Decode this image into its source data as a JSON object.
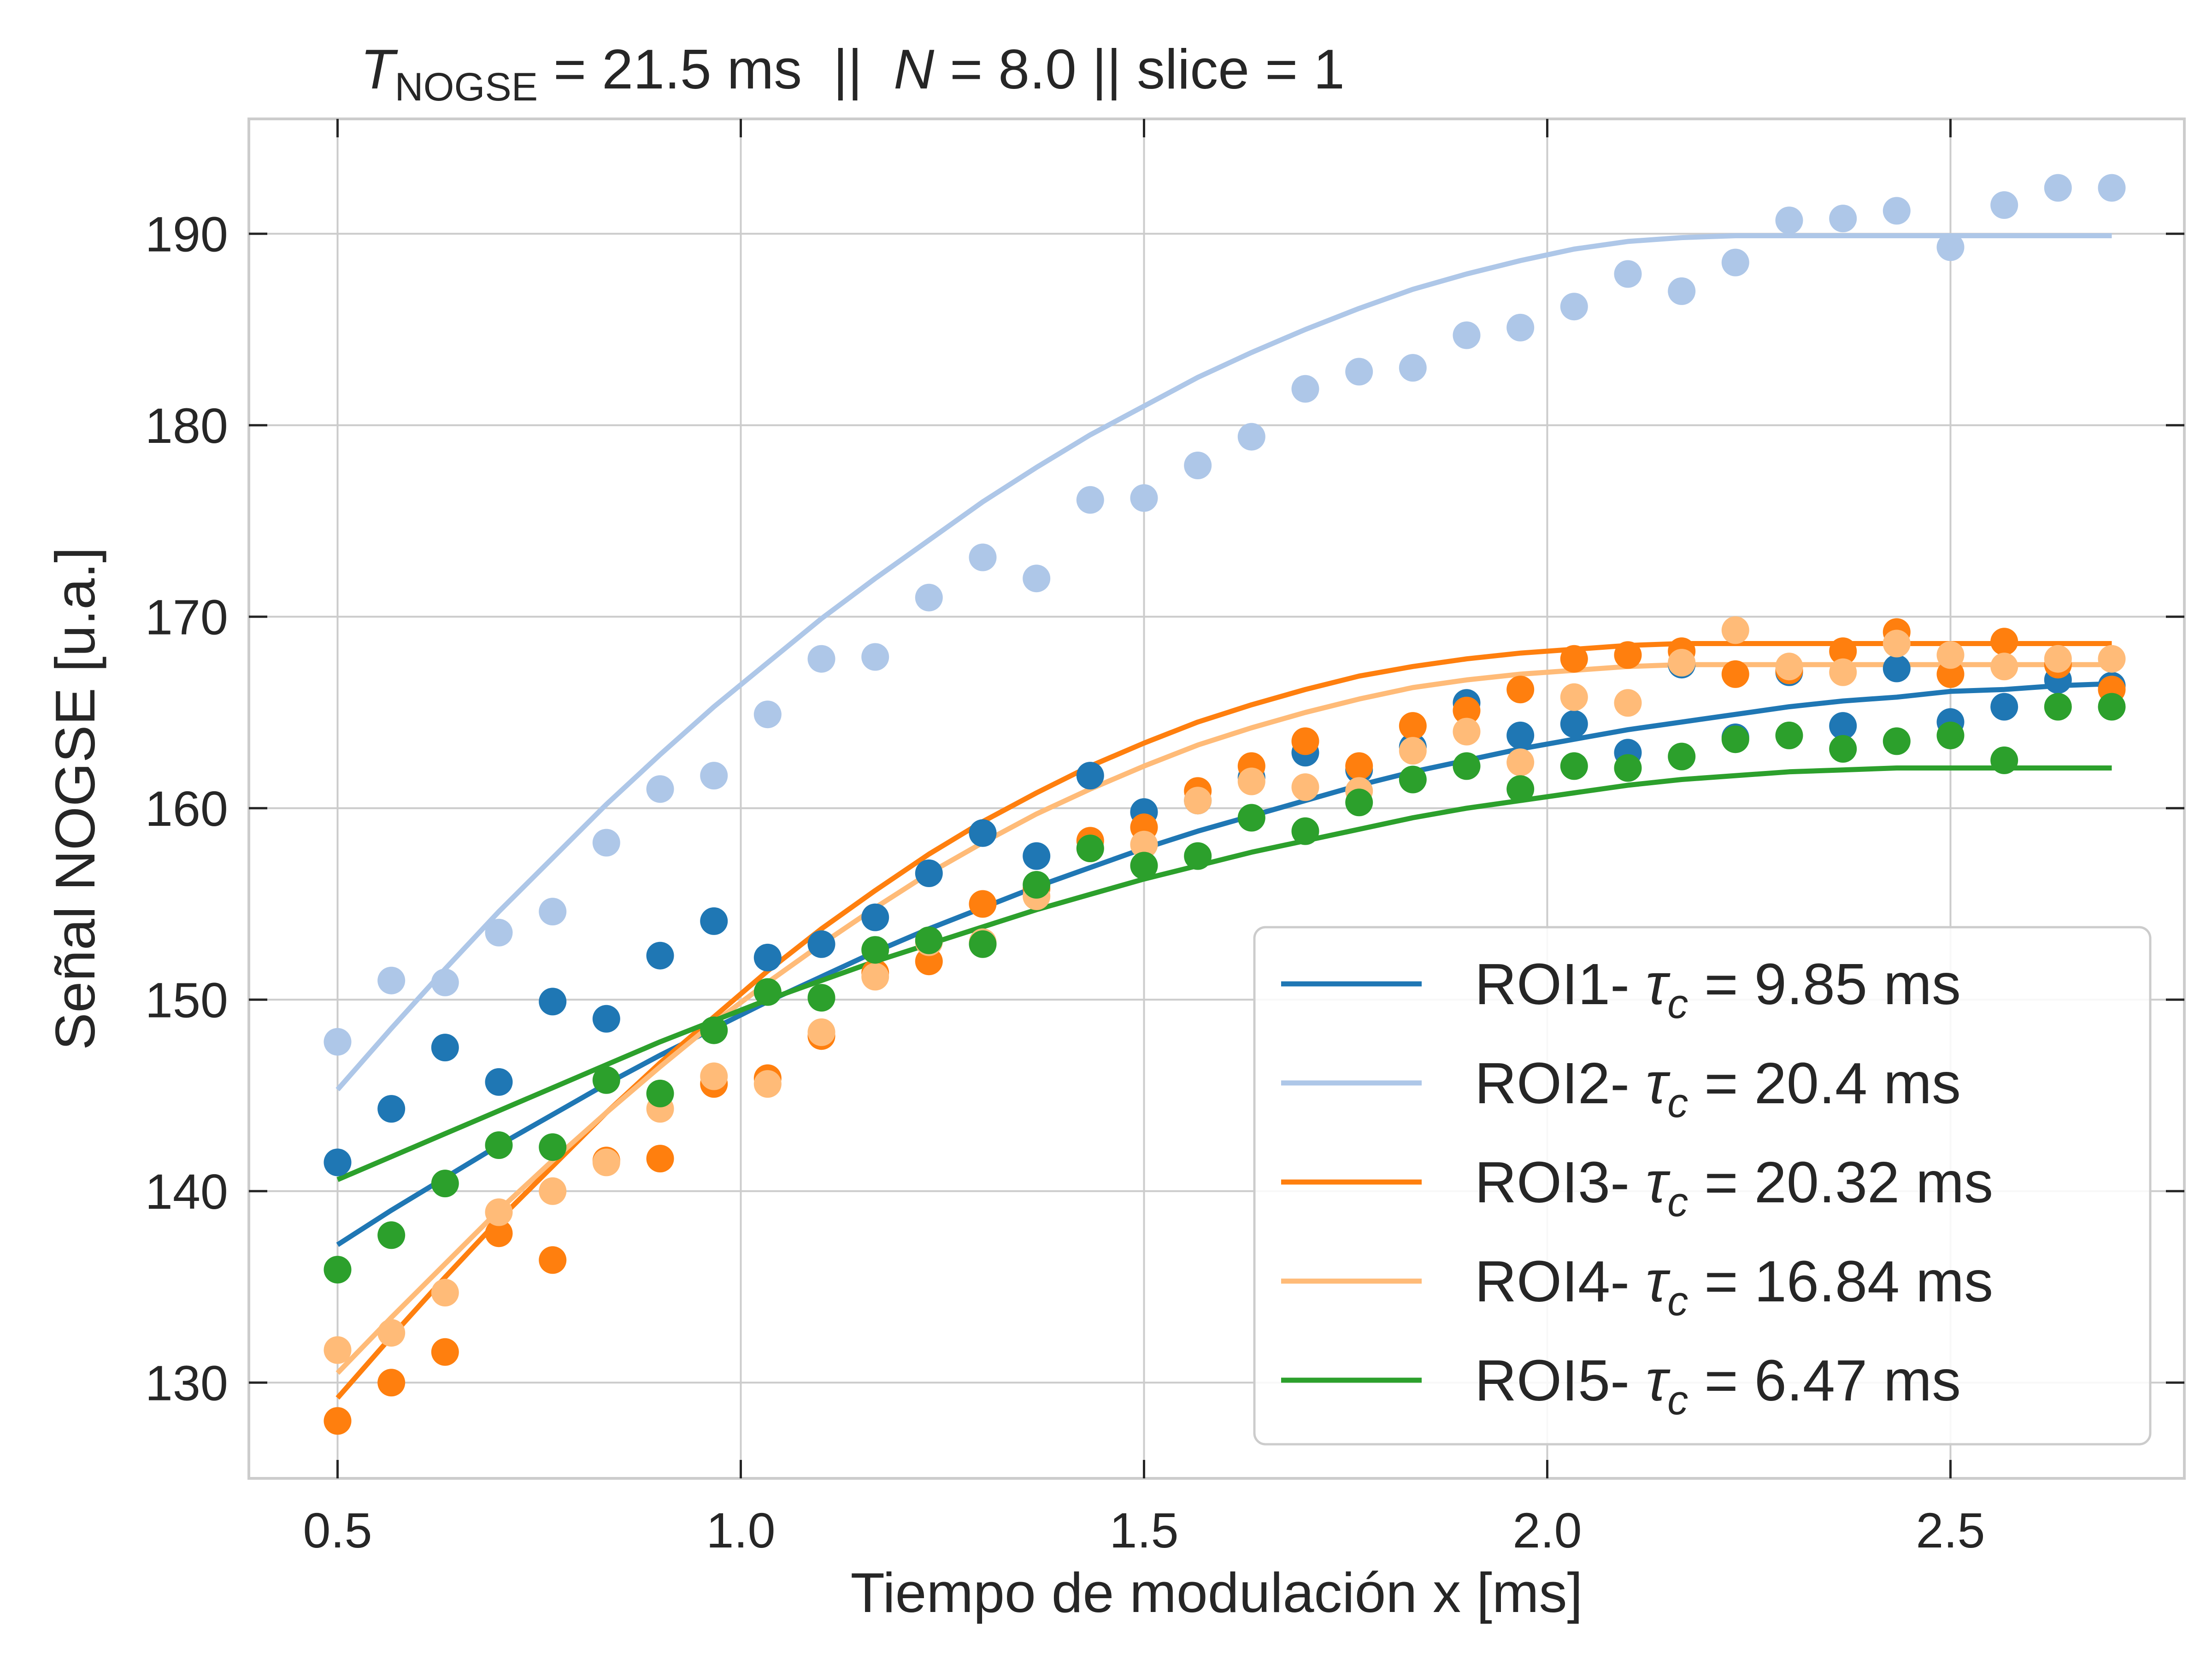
{
  "chart_data": {
    "type": "scatter",
    "title": {
      "t_symbol": "T",
      "t_subscript": "NOGSE",
      "t_value": " = 21.5 ms  ||  ",
      "n_symbol": "N",
      "rest": " = 8.0 || slice = 1"
    },
    "xlabel": "Tiempo de modulación x [ms]",
    "ylabel": "Señal NOGSE [u.a.]",
    "xlim": [
      0.39,
      2.79
    ],
    "ylim": [
      125,
      196
    ],
    "xticks": [
      0.5,
      1.0,
      1.5,
      2.0,
      2.5
    ],
    "xtick_labels": [
      "0.5",
      "1.0",
      "1.5",
      "2.0",
      "2.5"
    ],
    "yticks": [
      130,
      140,
      150,
      160,
      170,
      180,
      190
    ],
    "ytick_labels": [
      "130",
      "140",
      "150",
      "160",
      "170",
      "180",
      "190"
    ],
    "grid": true,
    "legend_position": "lower-right",
    "x": [
      0.5,
      0.5667,
      0.6333,
      0.7,
      0.7667,
      0.8333,
      0.9,
      0.9667,
      1.0333,
      1.1,
      1.1667,
      1.2333,
      1.3,
      1.3667,
      1.4333,
      1.5,
      1.5667,
      1.6333,
      1.7,
      1.7667,
      1.8333,
      1.9,
      1.9667,
      2.0333,
      2.1,
      2.1667,
      2.2333,
      2.3,
      2.3667,
      2.4333,
      2.5,
      2.5667,
      2.6333,
      2.7
    ],
    "series": [
      {
        "name_prefix": "ROI1- ",
        "tau_symbol": "τ",
        "tau_sub": "c",
        "value_text": " = 9.85 ms",
        "color": "#1f77b4",
        "points": [
          141.5,
          144.3,
          147.5,
          145.7,
          149.9,
          149.0,
          152.3,
          154.1,
          152.2,
          152.9,
          154.3,
          156.6,
          158.7,
          157.5,
          161.7,
          159.8,
          160.4,
          161.6,
          162.9,
          162.0,
          163.2,
          165.5,
          163.8,
          164.4,
          162.9,
          167.5,
          163.7,
          167.1,
          164.3,
          167.3,
          164.5,
          165.3,
          166.7,
          166.4
        ],
        "fit_curve": [
          137.2,
          139.0,
          140.7,
          142.4,
          144.0,
          145.6,
          147.1,
          148.5,
          149.9,
          151.2,
          152.5,
          153.7,
          154.8,
          155.9,
          156.9,
          157.9,
          158.8,
          159.6,
          160.4,
          161.2,
          161.9,
          162.5,
          163.1,
          163.6,
          164.1,
          164.5,
          164.9,
          165.3,
          165.6,
          165.8,
          166.1,
          166.2,
          166.4,
          166.5
        ]
      },
      {
        "name_prefix": "ROI2- ",
        "tau_symbol": "τ",
        "tau_sub": "c",
        "value_text": " = 20.4 ms",
        "color": "#aec7e8",
        "points": [
          147.8,
          151.0,
          150.9,
          153.5,
          154.6,
          158.2,
          161.0,
          161.7,
          164.9,
          167.8,
          167.9,
          171.0,
          173.1,
          172.0,
          176.1,
          176.2,
          177.9,
          179.4,
          181.9,
          182.8,
          183.0,
          184.7,
          185.1,
          186.2,
          187.9,
          187.0,
          188.5,
          190.7,
          190.8,
          191.2,
          189.3,
          191.5,
          192.4,
          192.4
        ],
        "fit_curve": [
          145.3,
          148.5,
          151.6,
          154.6,
          157.4,
          160.2,
          162.8,
          165.3,
          167.6,
          169.9,
          172.0,
          174.0,
          176.0,
          177.8,
          179.5,
          181.0,
          182.5,
          183.8,
          185.0,
          186.1,
          187.1,
          187.9,
          188.6,
          189.2,
          189.6,
          189.8,
          189.9,
          189.9,
          189.9,
          189.9,
          189.9,
          189.9,
          189.9,
          189.9
        ]
      },
      {
        "name_prefix": "ROI3- ",
        "tau_symbol": "τ",
        "tau_sub": "c",
        "value_text": " = 20.32 ms",
        "color": "#ff7f0e",
        "points": [
          128.0,
          130.0,
          131.6,
          137.8,
          136.4,
          141.6,
          141.7,
          145.6,
          145.9,
          148.1,
          151.4,
          152.0,
          155.0,
          155.8,
          158.3,
          159.0,
          160.9,
          162.2,
          163.5,
          162.2,
          164.3,
          165.1,
          166.2,
          167.8,
          168.0,
          168.2,
          167.0,
          167.2,
          168.2,
          169.2,
          167.0,
          168.7,
          167.5,
          166.2
        ],
        "fit_curve": [
          129.2,
          132.4,
          135.5,
          138.5,
          141.3,
          144.1,
          146.7,
          149.1,
          151.5,
          153.7,
          155.7,
          157.6,
          159.3,
          160.8,
          162.2,
          163.4,
          164.5,
          165.4,
          166.2,
          166.9,
          167.4,
          167.8,
          168.1,
          168.3,
          168.5,
          168.6,
          168.6,
          168.6,
          168.6,
          168.6,
          168.6,
          168.6,
          168.6,
          168.6
        ]
      },
      {
        "name_prefix": "ROI4- ",
        "tau_symbol": "τ",
        "tau_sub": "c",
        "value_text": " = 16.84 ms",
        "color": "#ffbb78",
        "points": [
          131.7,
          132.6,
          134.7,
          138.9,
          140.0,
          141.5,
          144.3,
          146.0,
          145.6,
          148.3,
          151.2,
          153.0,
          153.0,
          155.4,
          157.9,
          158.1,
          160.4,
          161.4,
          161.1,
          160.9,
          163.0,
          164.0,
          162.4,
          165.8,
          165.5,
          167.6,
          169.3,
          167.4,
          167.1,
          168.6,
          168.0,
          167.4,
          167.8,
          167.8
        ],
        "fit_curve": [
          130.5,
          133.4,
          136.2,
          139.0,
          141.6,
          144.1,
          146.5,
          148.8,
          150.9,
          152.9,
          154.8,
          156.6,
          158.2,
          159.7,
          161.0,
          162.2,
          163.3,
          164.2,
          165.0,
          165.7,
          166.3,
          166.7,
          167.0,
          167.2,
          167.4,
          167.5,
          167.5,
          167.5,
          167.5,
          167.5,
          167.5,
          167.5,
          167.5,
          167.5
        ]
      },
      {
        "name_prefix": "ROI5- ",
        "tau_symbol": "τ",
        "tau_sub": "c",
        "value_text": " = 6.47 ms",
        "color": "#2ca02c",
        "points": [
          135.9,
          137.7,
          140.4,
          142.4,
          142.3,
          145.8,
          145.1,
          148.4,
          150.4,
          150.1,
          152.6,
          153.1,
          152.9,
          156.0,
          157.9,
          157.0,
          157.5,
          159.5,
          158.8,
          160.3,
          161.5,
          162.2,
          161.0,
          162.2,
          162.1,
          162.7,
          163.6,
          163.8,
          163.1,
          163.5,
          163.8,
          162.5,
          165.3,
          165.3
        ],
        "fit_curve": [
          140.6,
          141.8,
          143.0,
          144.2,
          145.4,
          146.6,
          147.8,
          148.9,
          150.0,
          151.0,
          152.0,
          152.9,
          153.8,
          154.7,
          155.5,
          156.3,
          157.0,
          157.7,
          158.3,
          158.9,
          159.5,
          160.0,
          160.4,
          160.8,
          161.2,
          161.5,
          161.7,
          161.9,
          162.0,
          162.1,
          162.1,
          162.1,
          162.1,
          162.1
        ]
      }
    ]
  }
}
